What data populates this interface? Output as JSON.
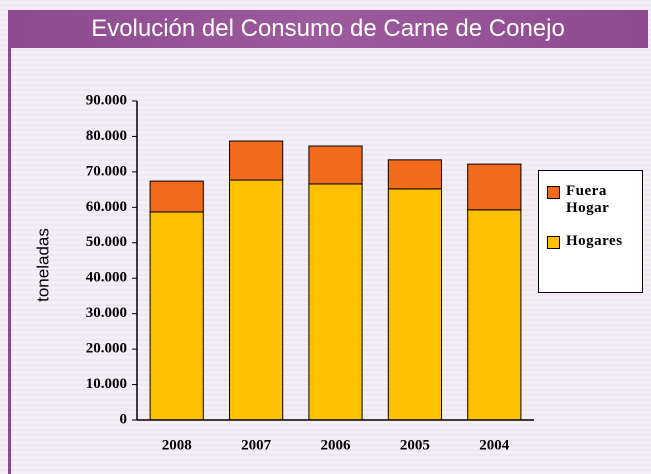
{
  "chart_data": {
    "type": "stacked_bar",
    "title": "Evolución del Consumo de Carne de Conejo",
    "y_label": "toneladas",
    "categories": [
      "2008",
      "2007",
      "2006",
      "2005",
      "2004"
    ],
    "series": [
      {
        "name": "Hogares",
        "color": "#ffc000",
        "values": [
          58700,
          67700,
          66600,
          65200,
          59300
        ]
      },
      {
        "name": "Fuera Hogar",
        "color": "#f26a1b",
        "values": [
          8700,
          11000,
          10700,
          8200,
          12900
        ]
      }
    ],
    "ylim": [
      0,
      90000
    ],
    "yticks": [
      0,
      {
        "value": 10000,
        "label": "10.000"
      },
      {
        "value": 20000,
        "label": "20.000"
      },
      {
        "value": 30000,
        "label": "30.000"
      },
      {
        "value": 40000,
        "label": "40.000"
      },
      {
        "value": 50000,
        "label": "50.000"
      },
      {
        "value": 60000,
        "label": "60.000"
      },
      {
        "value": 70000,
        "label": "70.000"
      },
      {
        "value": 80000,
        "label": "80.000"
      },
      {
        "value": 90000,
        "label": "90.000"
      }
    ],
    "legend": "right"
  }
}
